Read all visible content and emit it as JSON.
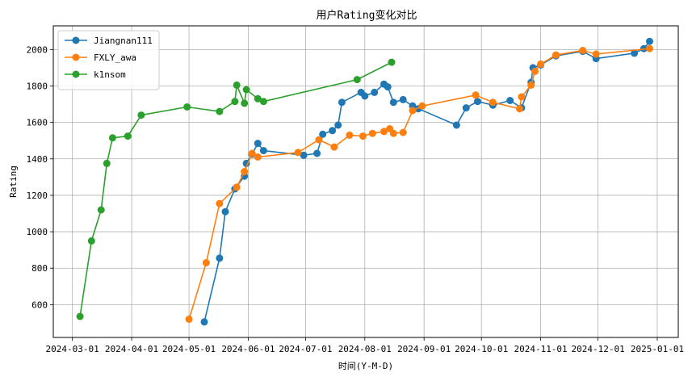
{
  "chart_data": {
    "type": "line",
    "title": "用户Rating变化对比",
    "xlabel": "时间(Y-M-D)",
    "ylabel": "Rating",
    "xlim": [
      "2024-02-20",
      "2025-01-12"
    ],
    "ylim": [
      420,
      2130
    ],
    "x_ticks": [
      "2024-03-01",
      "2024-04-01",
      "2024-05-01",
      "2024-06-01",
      "2024-07-01",
      "2024-08-01",
      "2024-09-01",
      "2024-10-01",
      "2024-11-01",
      "2024-12-01",
      "2025-01-01"
    ],
    "y_ticks": [
      600,
      800,
      1000,
      1200,
      1400,
      1600,
      1800,
      2000
    ],
    "grid": true,
    "legend_position": "top-left",
    "series": [
      {
        "name": "Jiangnan111",
        "color": "#1f77b4",
        "points": [
          [
            "2024-05-09",
            505
          ],
          [
            "2024-05-17",
            855
          ],
          [
            "2024-05-20",
            1110
          ],
          [
            "2024-05-25",
            1235
          ],
          [
            "2024-05-30",
            1305
          ],
          [
            "2024-05-31",
            1375
          ],
          [
            "2024-06-03",
            1425
          ],
          [
            "2024-06-06",
            1485
          ],
          [
            "2024-06-09",
            1445
          ],
          [
            "2024-06-30",
            1420
          ],
          [
            "2024-07-07",
            1430
          ],
          [
            "2024-07-10",
            1535
          ],
          [
            "2024-07-15",
            1555
          ],
          [
            "2024-07-18",
            1585
          ],
          [
            "2024-07-20",
            1710
          ],
          [
            "2024-07-30",
            1765
          ],
          [
            "2024-08-01",
            1745
          ],
          [
            "2024-08-06",
            1765
          ],
          [
            "2024-08-11",
            1810
          ],
          [
            "2024-08-13",
            1795
          ],
          [
            "2024-08-16",
            1710
          ],
          [
            "2024-08-21",
            1725
          ],
          [
            "2024-08-26",
            1690
          ],
          [
            "2024-08-29",
            1675
          ],
          [
            "2024-09-18",
            1585
          ],
          [
            "2024-09-23",
            1680
          ],
          [
            "2024-09-29",
            1715
          ],
          [
            "2024-10-07",
            1695
          ],
          [
            "2024-10-16",
            1720
          ],
          [
            "2024-10-22",
            1680
          ],
          [
            "2024-10-27",
            1820
          ],
          [
            "2024-10-28",
            1900
          ],
          [
            "2024-11-01",
            1915
          ],
          [
            "2024-11-09",
            1965
          ],
          [
            "2024-11-23",
            1990
          ],
          [
            "2024-11-30",
            1950
          ],
          [
            "2024-12-20",
            1980
          ],
          [
            "2024-12-25",
            2005
          ],
          [
            "2024-12-28",
            2045
          ]
        ]
      },
      {
        "name": "FXLY_awa",
        "color": "#ff7f0e",
        "points": [
          [
            "2024-05-01",
            520
          ],
          [
            "2024-05-10",
            830
          ],
          [
            "2024-05-17",
            1155
          ],
          [
            "2024-05-26",
            1245
          ],
          [
            "2024-05-30",
            1330
          ],
          [
            "2024-06-03",
            1430
          ],
          [
            "2024-06-06",
            1410
          ],
          [
            "2024-06-27",
            1435
          ],
          [
            "2024-07-08",
            1505
          ],
          [
            "2024-07-16",
            1465
          ],
          [
            "2024-07-24",
            1530
          ],
          [
            "2024-07-31",
            1525
          ],
          [
            "2024-08-05",
            1540
          ],
          [
            "2024-08-11",
            1550
          ],
          [
            "2024-08-14",
            1565
          ],
          [
            "2024-08-16",
            1540
          ],
          [
            "2024-08-21",
            1545
          ],
          [
            "2024-08-26",
            1665
          ],
          [
            "2024-08-31",
            1690
          ],
          [
            "2024-09-28",
            1750
          ],
          [
            "2024-10-07",
            1710
          ],
          [
            "2024-10-21",
            1675
          ],
          [
            "2024-10-22",
            1740
          ],
          [
            "2024-10-27",
            1805
          ],
          [
            "2024-10-29",
            1880
          ],
          [
            "2024-11-01",
            1920
          ],
          [
            "2024-11-09",
            1970
          ],
          [
            "2024-11-23",
            1995
          ],
          [
            "2024-11-30",
            1975
          ],
          [
            "2024-12-28",
            2005
          ]
        ]
      },
      {
        "name": "k1nsom",
        "color": "#2ca02c",
        "points": [
          [
            "2024-03-05",
            535
          ],
          [
            "2024-03-11",
            950
          ],
          [
            "2024-03-16",
            1120
          ],
          [
            "2024-03-19",
            1375
          ],
          [
            "2024-03-22",
            1515
          ],
          [
            "2024-03-30",
            1525
          ],
          [
            "2024-04-06",
            1640
          ],
          [
            "2024-04-30",
            1685
          ],
          [
            "2024-05-17",
            1660
          ],
          [
            "2024-05-25",
            1715
          ],
          [
            "2024-05-26",
            1805
          ],
          [
            "2024-05-30",
            1705
          ],
          [
            "2024-05-31",
            1780
          ],
          [
            "2024-06-06",
            1730
          ],
          [
            "2024-06-09",
            1715
          ],
          [
            "2024-07-28",
            1835
          ],
          [
            "2024-08-15",
            1930
          ]
        ]
      }
    ]
  }
}
